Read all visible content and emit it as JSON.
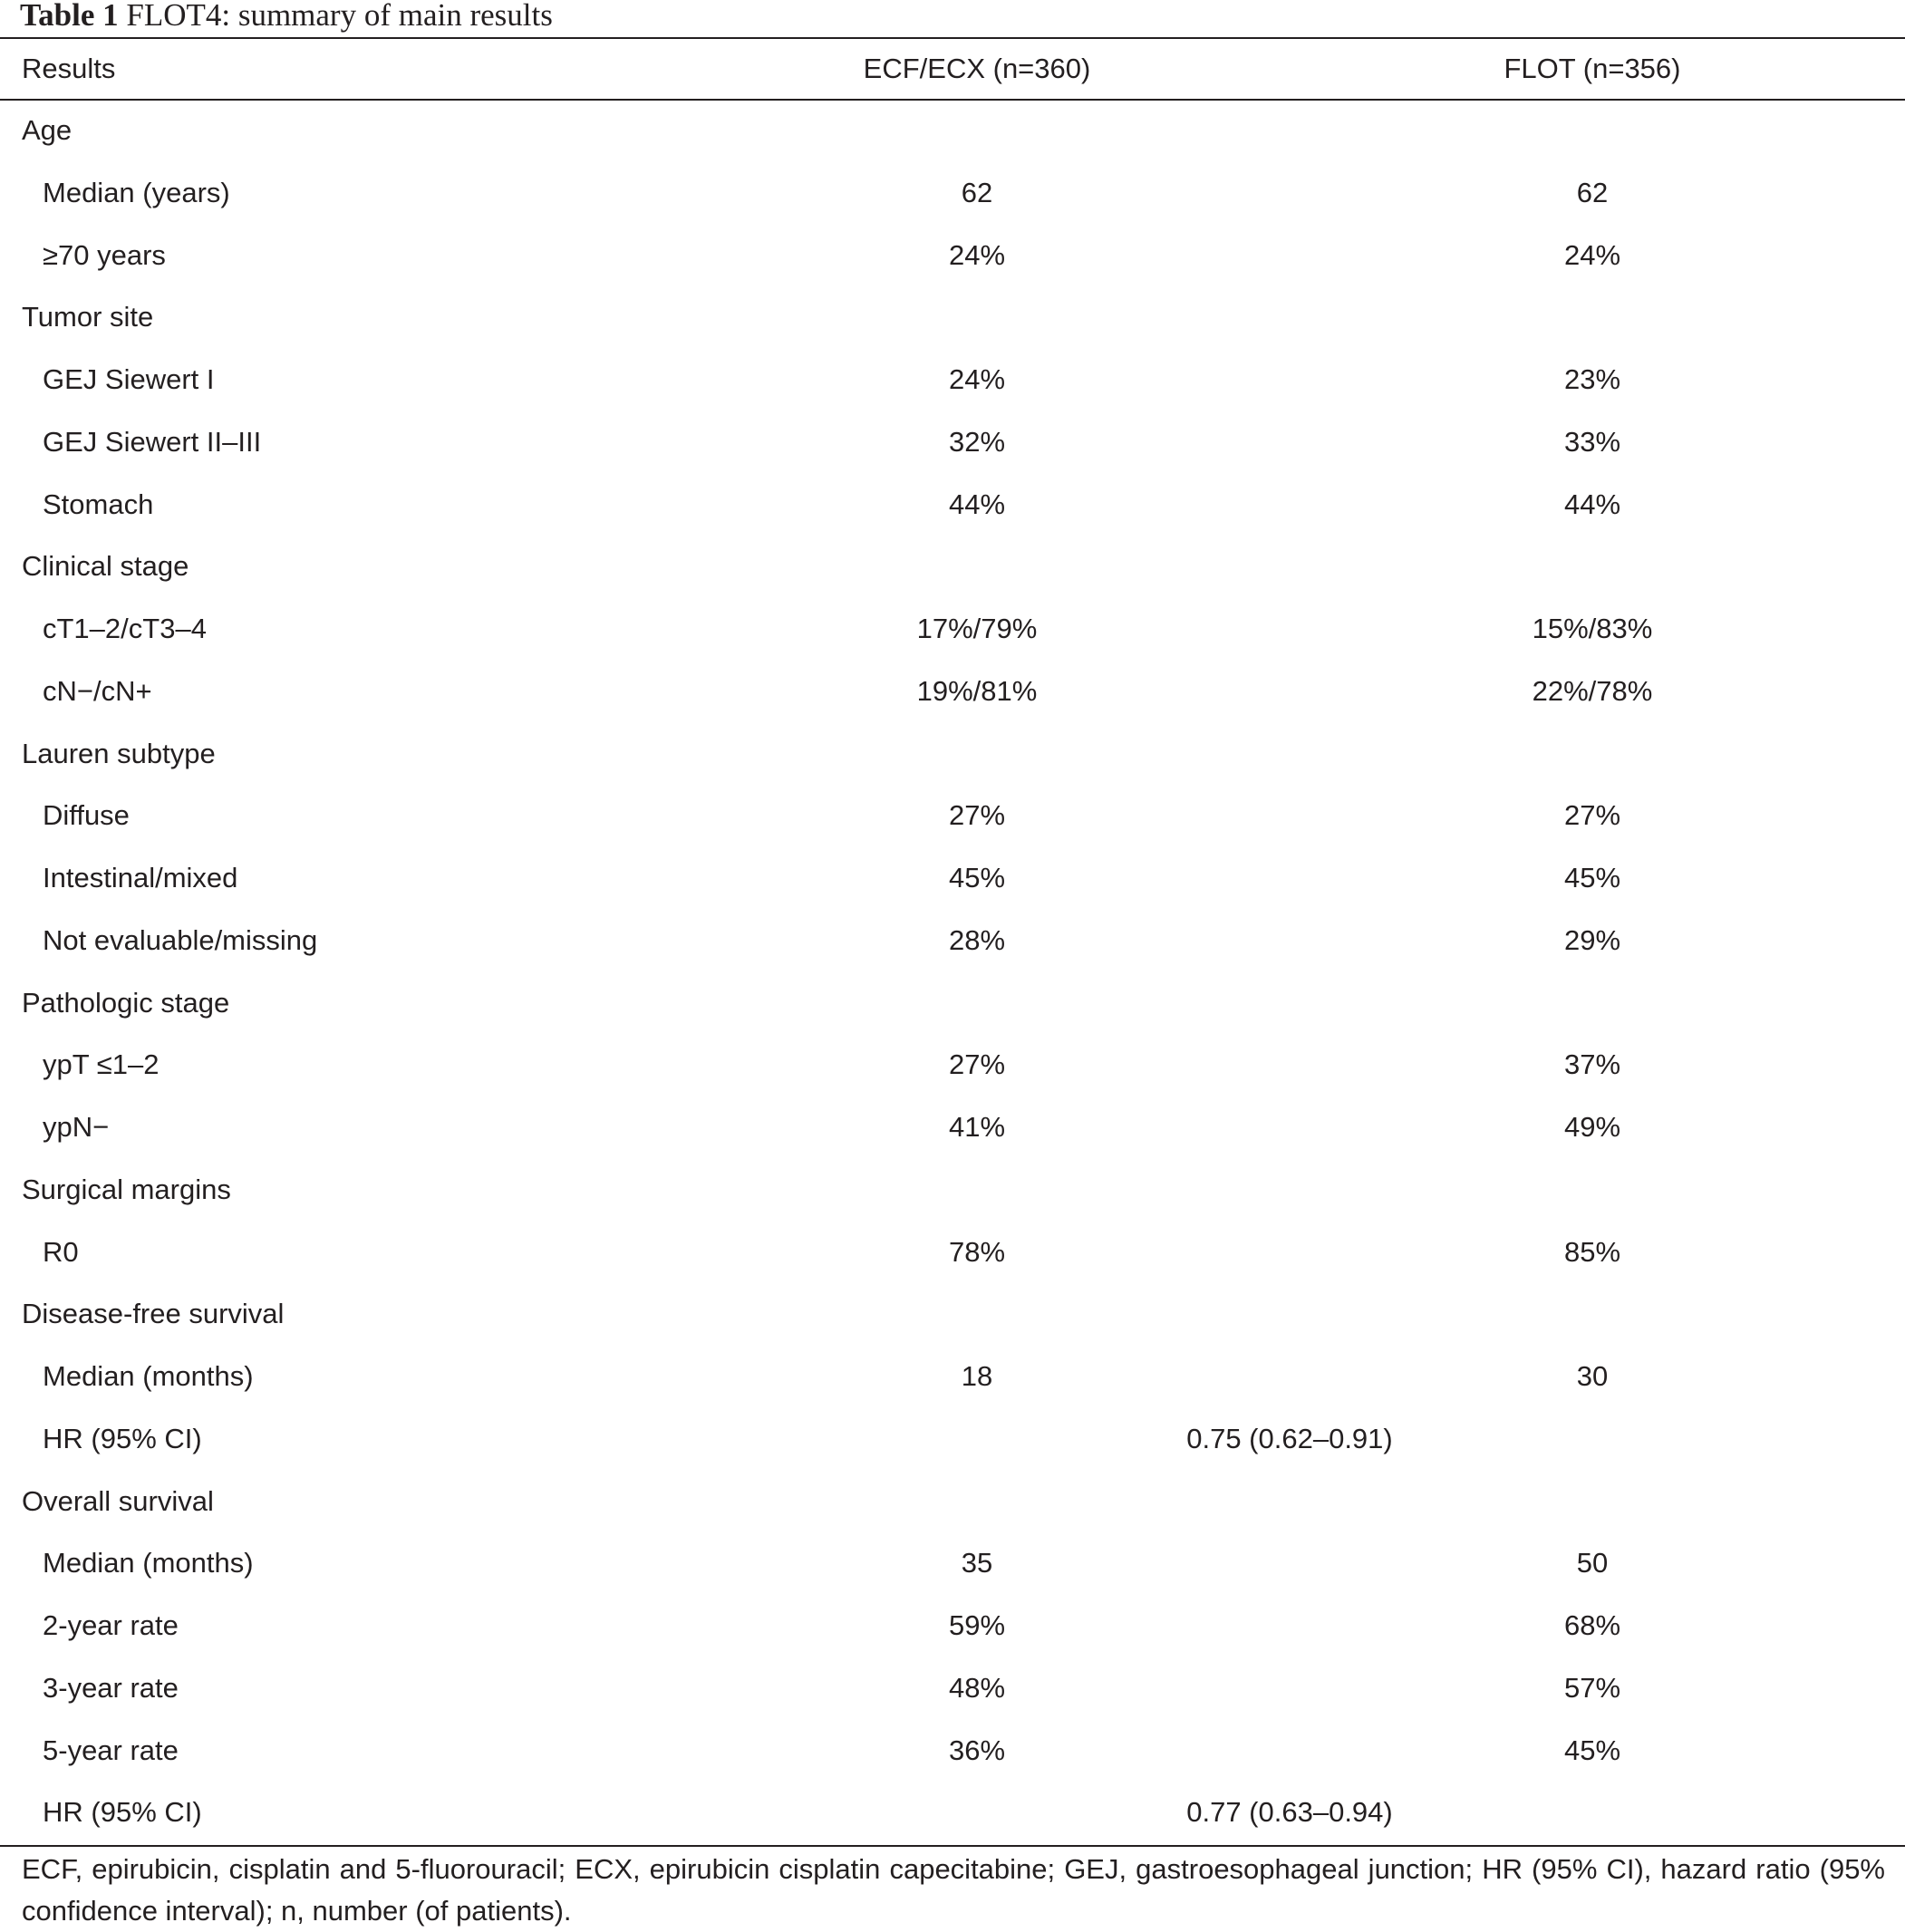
{
  "caption": {
    "label": "Table 1",
    "title": " FLOT4: summary of main results"
  },
  "header": {
    "col0": "Results",
    "col1": "ECF/ECX (n=360)",
    "col2": "FLOT (n=356)"
  },
  "rows": [
    {
      "label": "Age",
      "c1": "",
      "c2": ""
    },
    {
      "label": "Median (years)",
      "c1": "62",
      "c2": "62"
    },
    {
      "label": "≥70 years",
      "c1": "24%",
      "c2": "24%"
    },
    {
      "label": "Tumor site",
      "c1": "",
      "c2": ""
    },
    {
      "label": "GEJ Siewert I",
      "c1": "24%",
      "c2": "23%"
    },
    {
      "label": "GEJ Siewert II–III",
      "c1": "32%",
      "c2": "33%"
    },
    {
      "label": "Stomach",
      "c1": "44%",
      "c2": "44%"
    },
    {
      "label": "Clinical stage",
      "c1": "",
      "c2": ""
    },
    {
      "label": "cT1–2/cT3–4",
      "c1": "17%/79%",
      "c2": "15%/83%"
    },
    {
      "label": "cN−/cN+",
      "c1": "19%/81%",
      "c2": "22%/78%"
    },
    {
      "label": "Lauren subtype",
      "c1": "",
      "c2": ""
    },
    {
      "label": "Diffuse",
      "c1": "27%",
      "c2": "27%"
    },
    {
      "label": "Intestinal/mixed",
      "c1": "45%",
      "c2": "45%"
    },
    {
      "label": "Not evaluable/missing",
      "c1": "28%",
      "c2": "29%"
    },
    {
      "label": "Pathologic stage",
      "c1": "",
      "c2": ""
    },
    {
      "label": "ypT ≤1–2",
      "c1": "27%",
      "c2": "37%"
    },
    {
      "label": "ypN−",
      "c1": "41%",
      "c2": "49%"
    },
    {
      "label": "Surgical margins",
      "c1": "",
      "c2": ""
    },
    {
      "label": "R0",
      "c1": "78%",
      "c2": "85%"
    },
    {
      "label": "Disease-free survival",
      "c1": "",
      "c2": ""
    },
    {
      "label": "Median (months)",
      "c1": "18",
      "c2": "30"
    },
    {
      "label": "HR (95% CI)",
      "span": "0.75 (0.62–0.91)"
    },
    {
      "label": "Overall survival",
      "c1": "",
      "c2": ""
    },
    {
      "label": "Median (months)",
      "c1": "35",
      "c2": "50"
    },
    {
      "label": "2-year rate",
      "c1": "59%",
      "c2": "68%"
    },
    {
      "label": "3-year rate",
      "c1": "48%",
      "c2": "57%"
    },
    {
      "label": "5-year rate",
      "c1": "36%",
      "c2": "45%"
    },
    {
      "label": "HR (95% CI)",
      "span": "0.77 (0.63–0.94)"
    }
  ],
  "footnote": "ECF, epirubicin, cisplatin and 5-fluorouracil; ECX, epirubicin cisplatin capecitabine; GEJ, gastroesophageal junction; HR (95% CI), hazard ratio (95% confidence interval); n, number (of patients)."
}
